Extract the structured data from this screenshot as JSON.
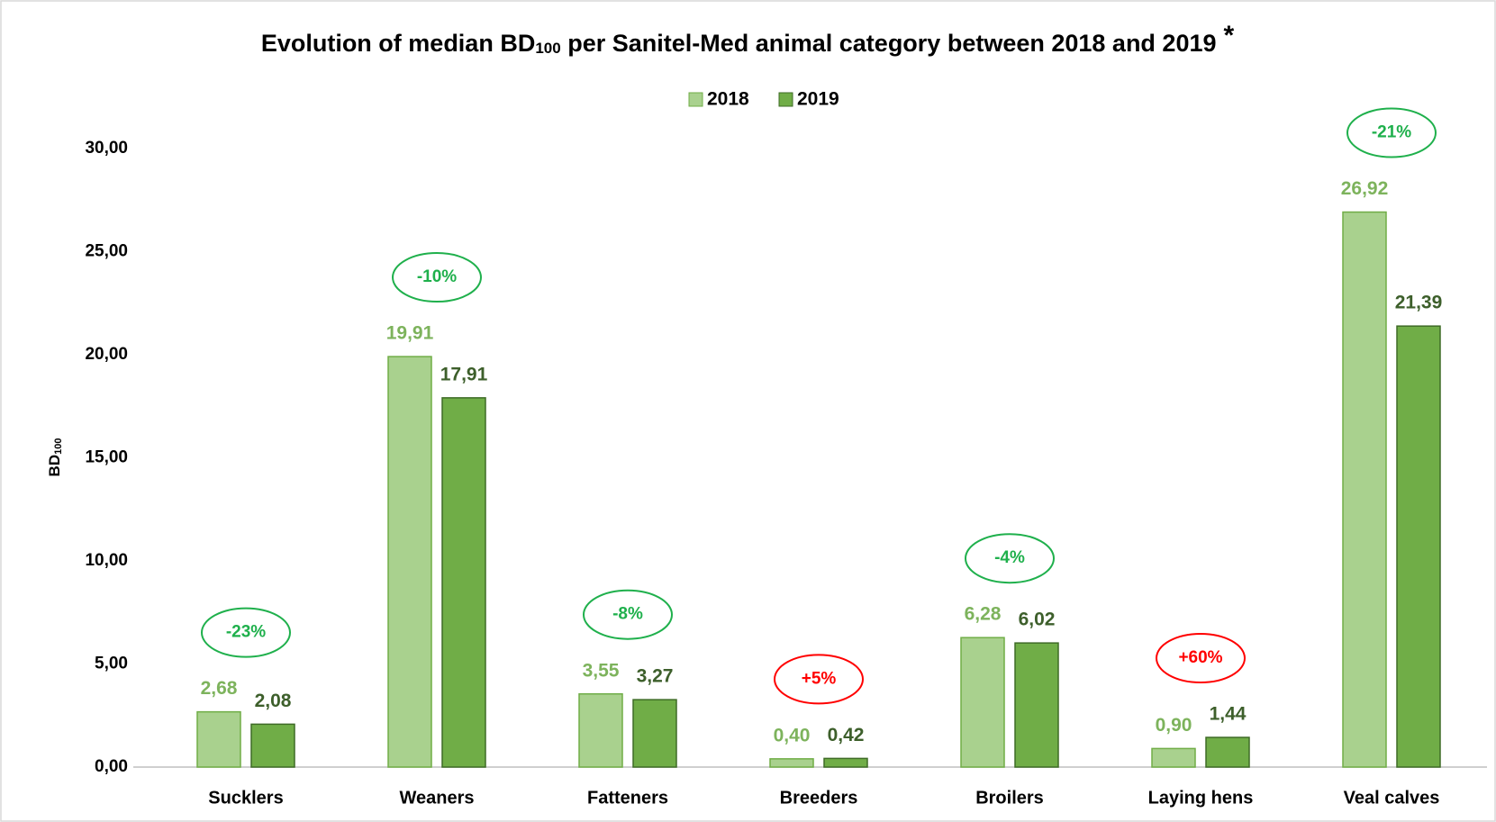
{
  "chart_data": {
    "type": "bar",
    "title_parts": [
      "Evolution of median BD",
      "100",
      " per Sanitel-Med animal category between 2018 and 2019",
      "*"
    ],
    "y_label_parts": [
      "BD",
      "100"
    ],
    "categories": [
      "Sucklers",
      "Weaners",
      "Fatteners",
      "Breeders",
      "Broilers",
      "Laying hens",
      "Veal calves"
    ],
    "series": [
      {
        "name": "2018",
        "color": "#a9d18e",
        "stroke": "#70ad47",
        "label_color": "#7db35c",
        "values": [
          2.68,
          19.91,
          3.55,
          0.4,
          6.28,
          0.9,
          26.92
        ],
        "value_labels": [
          "2,68",
          "19,91",
          "3,55",
          "0,40",
          "6,28",
          "0,90",
          "26,92"
        ]
      },
      {
        "name": "2019",
        "color": "#70ad47",
        "stroke": "#3e6b26",
        "label_color": "#3d5f2b",
        "values": [
          2.08,
          17.91,
          3.27,
          0.42,
          6.02,
          1.44,
          21.39
        ],
        "value_labels": [
          "2,08",
          "17,91",
          "3,27",
          "0,42",
          "6,02",
          "1,44",
          "21,39"
        ]
      }
    ],
    "annotations": [
      {
        "text": "-23%",
        "color": "#1fb04c"
      },
      {
        "text": "-10%",
        "color": "#1fb04c"
      },
      {
        "text": "-8%",
        "color": "#1fb04c"
      },
      {
        "text": "+5%",
        "color": "#ff0000"
      },
      {
        "text": "-4%",
        "color": "#1fb04c"
      },
      {
        "text": "+60%",
        "color": "#ff0000"
      },
      {
        "text": "-21%",
        "color": "#1fb04c"
      }
    ],
    "ylim": [
      0,
      30
    ],
    "yticks": [
      {
        "value": 0,
        "label": "0,00"
      },
      {
        "value": 5,
        "label": "5,00"
      },
      {
        "value": 10,
        "label": "10,00"
      },
      {
        "value": 15,
        "label": "15,00"
      },
      {
        "value": 20,
        "label": "20,00"
      },
      {
        "value": 25,
        "label": "25,00"
      },
      {
        "value": 30,
        "label": "30,00"
      }
    ],
    "grid": false,
    "legend": "top"
  }
}
